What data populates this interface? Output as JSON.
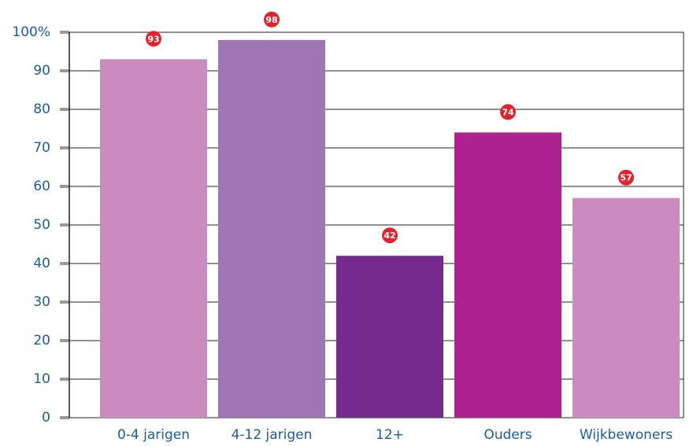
{
  "chart_data": {
    "type": "bar",
    "categories": [
      "0-4 jarigen",
      "4-12 jarigen",
      "12+",
      "Ouders",
      "Wijkbewoners"
    ],
    "values": [
      93,
      98,
      42,
      74,
      57
    ],
    "colors": [
      "#cc8bbf",
      "#9e76b4",
      "#762a8e",
      "#ae2190",
      "#cc8bbf"
    ],
    "label_color": "#e3232b",
    "ylim": [
      0,
      100
    ],
    "yticks": [
      0,
      10,
      20,
      30,
      40,
      50,
      60,
      70,
      80,
      90,
      {
        "value": 100,
        "label": "100%"
      }
    ],
    "grid": true
  }
}
